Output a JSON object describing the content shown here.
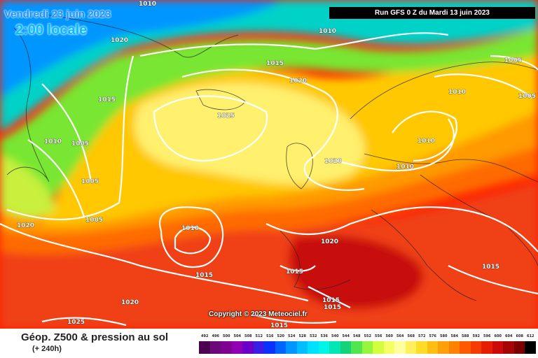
{
  "header": {
    "date": "Vendredi 23 juin 2023",
    "time": "2:00 locale",
    "run": "Run GFS 0 Z du Mardi 13 juin 2023"
  },
  "copyright": "Copyright © 2023 Meteociel.fr",
  "legend": {
    "title": "Géop. Z500 & pression au sol",
    "subtitle": "(+ 240h)",
    "ticks": [
      "492",
      "496",
      "500",
      "504",
      "508",
      "512",
      "516",
      "520",
      "524",
      "528",
      "532",
      "536",
      "540",
      "544",
      "548",
      "552",
      "556",
      "560",
      "564",
      "568",
      "572",
      "576",
      "580",
      "584",
      "588",
      "592",
      "596",
      "600",
      "604",
      "608",
      "612"
    ],
    "colors": [
      "#4b0050",
      "#6a0a7a",
      "#800090",
      "#8f00b4",
      "#6a00c8",
      "#3a1ee6",
      "#0a32ff",
      "#0064ff",
      "#0096ff",
      "#00beff",
      "#00e1ff",
      "#00f5e6",
      "#00e6b4",
      "#14d278",
      "#50e650",
      "#96f53c",
      "#d2ff3c",
      "#f5ff64",
      "#ffffa0",
      "#fff05a",
      "#ffdc28",
      "#ffbe14",
      "#ffa00a",
      "#ff8200",
      "#ff5a00",
      "#f53c00",
      "#e61e00",
      "#cd0a0a",
      "#a50505",
      "#7d0000",
      "#000000"
    ]
  },
  "isobar_labels": [
    "1010",
    "1010",
    "1020",
    "1015",
    "1020",
    "1005",
    "1015",
    "1010",
    "1005",
    "1025",
    "1010",
    "1005",
    "1010",
    "1005",
    "1020",
    "1010",
    "1005",
    "1010",
    "1020",
    "1020",
    "1015",
    "1015",
    "1015",
    "1015",
    "1020",
    "1025",
    "1015",
    "1015"
  ],
  "colors": {
    "date_text": "#1e90ff",
    "time_text": "#00bfff",
    "run_box_bg": "#000000",
    "isobar_line": "#ffffff"
  }
}
